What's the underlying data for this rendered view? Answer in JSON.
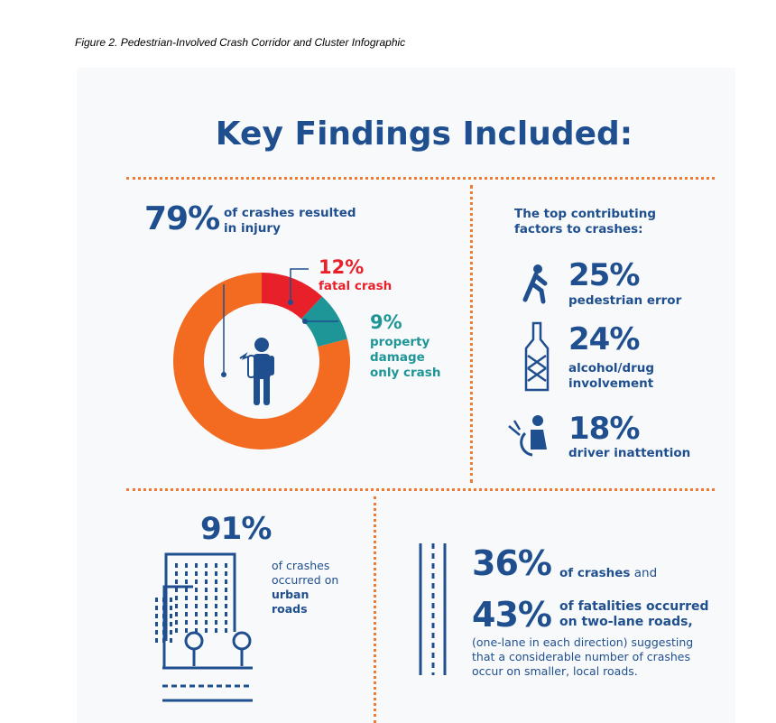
{
  "caption": "Figure 2. Pedestrian-Involved Crash Corridor and Cluster Infographic",
  "heading": "Key Findings Included:",
  "injury": {
    "pct": "79%",
    "text_line1": "of crashes resulted",
    "text_line2": "in injury"
  },
  "fatal": {
    "pct": "12%",
    "text": "fatal crash"
  },
  "property": {
    "pct": "9%",
    "line1": "property",
    "line2": "damage",
    "line3": "only crash"
  },
  "chart_data": {
    "type": "pie",
    "categories": [
      "in injury",
      "fatal crash",
      "property damage only crash"
    ],
    "values": [
      79,
      12,
      9
    ],
    "colors": [
      "#f26b21",
      "#e8202a",
      "#1e9597"
    ]
  },
  "factors": {
    "title_line1": "The top contributing",
    "title_line2": "factors to crashes:",
    "items": [
      {
        "pct": "25%",
        "line1": "pedestrian error",
        "line2": ""
      },
      {
        "pct": "24%",
        "line1": "alcohol/drug",
        "line2": "involvement"
      },
      {
        "pct": "18%",
        "line1": "driver inattention",
        "line2": ""
      }
    ]
  },
  "urban": {
    "pct": "91%",
    "line1": "of crashes",
    "line2": "occurred on",
    "line3": "urban",
    "line4": "roads"
  },
  "twolane": {
    "pct1": "36%",
    "text1_bold": "of crashes",
    "text1_rest": " and",
    "pct2": "43%",
    "text2_line1": "of fatalities occurred",
    "text2_line2": "on two-lane roads,",
    "note_line1": "(one-lane in each direction) suggesting",
    "note_line2": "that a considerable number of crashes",
    "note_line3": "occur on smaller, local roads."
  }
}
